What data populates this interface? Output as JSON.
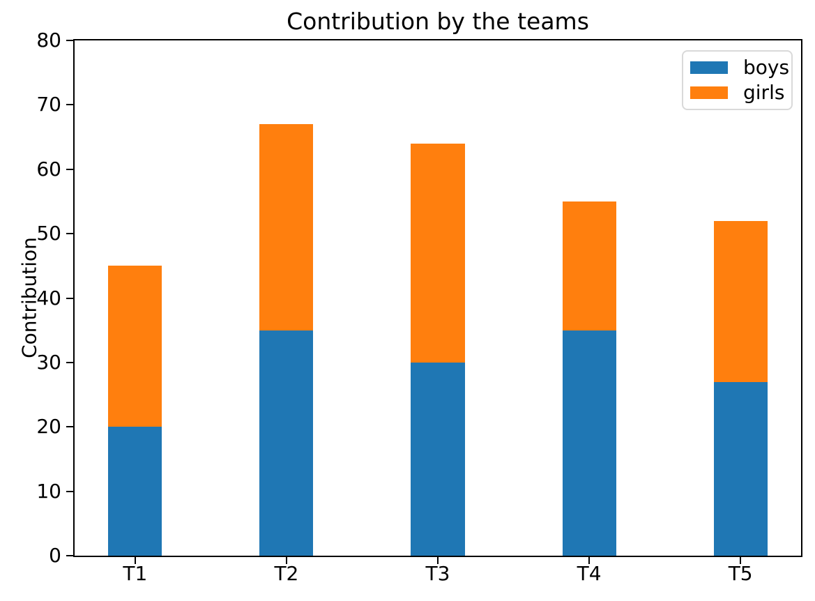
{
  "chart_data": {
    "type": "bar",
    "stacked": true,
    "title": "Contribution by the teams",
    "xlabel": "",
    "ylabel": "Contribution",
    "categories": [
      "T1",
      "T2",
      "T3",
      "T4",
      "T5"
    ],
    "series": [
      {
        "name": "boys",
        "color": "#1f77b4",
        "values": [
          20,
          35,
          30,
          35,
          27
        ]
      },
      {
        "name": "girls",
        "color": "#ff7f0e",
        "values": [
          25,
          32,
          34,
          20,
          25
        ]
      }
    ],
    "stacked_totals": [
      45,
      67,
      64,
      55,
      52
    ],
    "ylim": [
      0,
      80
    ],
    "xlim": [
      -0.4,
      4.4
    ],
    "yticks": [
      0,
      10,
      20,
      30,
      40,
      50,
      60,
      70,
      80
    ],
    "grid": false,
    "legend_position": "upper right",
    "bar_width_fraction": 0.355,
    "axis_color": "#000000",
    "background_color": "#ffffff"
  }
}
